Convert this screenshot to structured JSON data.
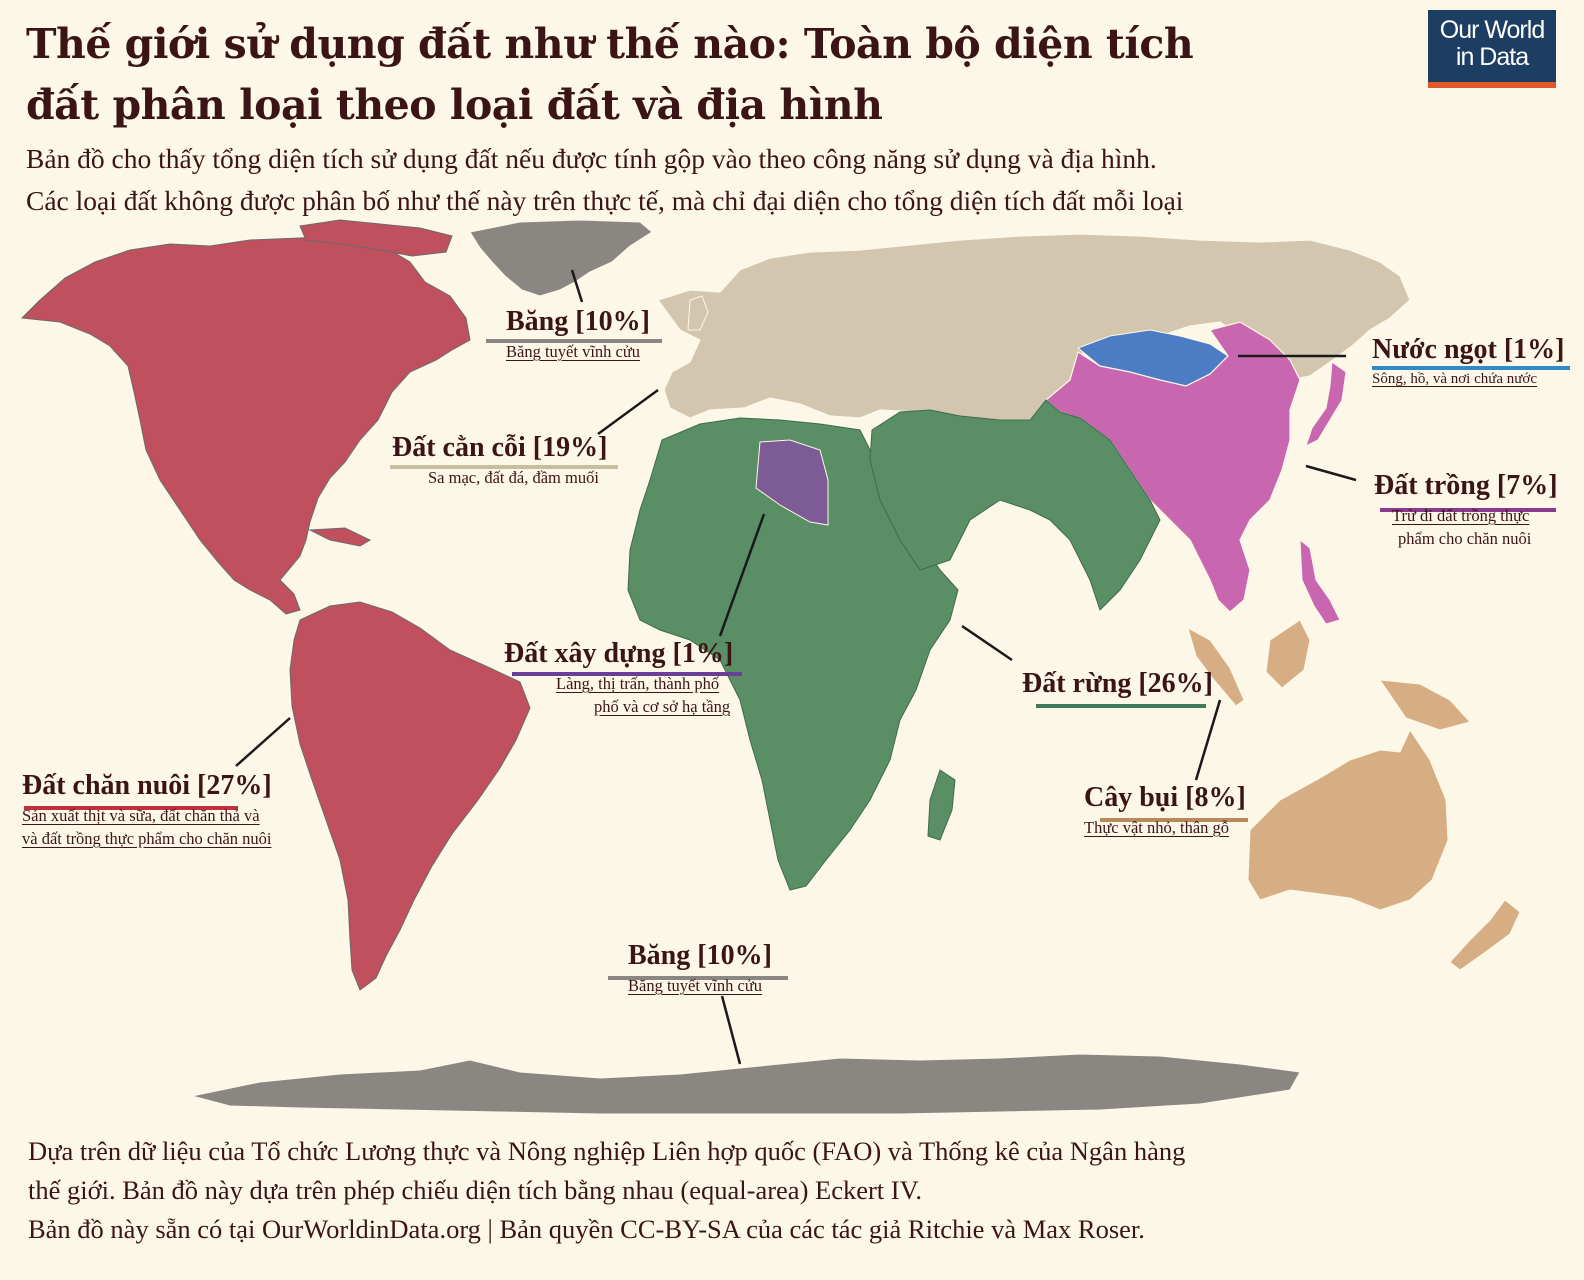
{
  "title": "Thế giới sử dụng đất như thế nào: Toàn bộ diện tích đất phân loại theo loại đất và địa hình",
  "subtitle_line1": "Bản đồ cho thấy tổng diện tích sử dụng đất nếu được tính gộp vào theo công năng sử dụng và địa hình.",
  "subtitle_line2": "Các loại đất không được phân bố như thế này trên thực tế, mà chỉ đại diện cho tổng diện tích đất mỗi loại",
  "logo_line1": "Our World",
  "logo_line2": "in Data",
  "colors": {
    "background": "#fdf7e7",
    "ice": "#8a8783",
    "barren": "#d2c6ae",
    "forest": "#5a8f66",
    "livestock": "#c0505e",
    "crops": "#c867b0",
    "shrub": "#d7ae83",
    "urban": "#7d5c96",
    "freshwater": "#4c7dc4"
  },
  "labels": {
    "ice_north": {
      "title": "Băng [10%]",
      "sub": "Băng tuyết vĩnh cửu"
    },
    "barren": {
      "title": "Đất cằn cỗi [19%]",
      "sub": "Sa mạc, đất đá, đầm muối"
    },
    "freshwater": {
      "title": "Nước ngọt [1%]",
      "sub": "Sông, hồ, và nơi chứa nước"
    },
    "crops": {
      "title": "Đất trồng [7%]",
      "sub1": "Trừ đi đất trồng thực",
      "sub2": "phẩm cho chăn nuôi"
    },
    "urban": {
      "title": "Đất xây dựng [1%]",
      "sub1": "Làng, thị trấn, thành phố",
      "sub2": "phố và cơ sở hạ tầng"
    },
    "forest": {
      "title": "Đất rừng [26%]"
    },
    "livestock": {
      "title": "Đất chăn nuôi [27%]",
      "sub1": "Sản xuất thịt và sữa, đất chăn thả và",
      "sub2": "và đất trồng thực phẩm cho chăn nuôi"
    },
    "shrub": {
      "title": "Cây bụi [8%]",
      "sub": "Thực vật nhỏ, thân gỗ"
    },
    "ice_south": {
      "title": "Băng [10%]",
      "sub": "Băng tuyết vĩnh cửu"
    }
  },
  "footer_line1": "Dựa trên dữ liệu của Tổ chức Lương thực và Nông nghiệp Liên hợp quốc (FAO) và Thống kê của Ngân hàng",
  "footer_line2": "thế giới. Bản đồ này dựa trên phép chiếu diện tích bằng nhau (equal-area) Eckert IV.",
  "footer_line3": "Bản đồ này sẵn có tại OurWorldinData.org | Bản quyền CC-BY-SA của các tác giả Ritchie và Max Roser."
}
